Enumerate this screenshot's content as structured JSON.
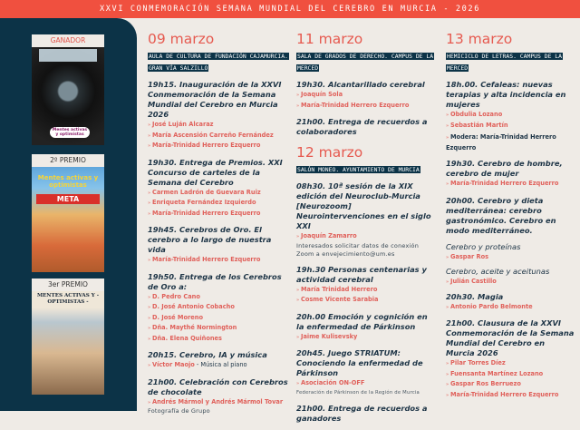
{
  "banner": "XXVI CONMEMORACIÓN SEMANA MUNDIAL DEL CEREBRO EN MURCIA - 2026",
  "colors": {
    "banner": "#f0503f",
    "sidebar": "#0c3347",
    "accent": "#e65a50",
    "background": "#efebe6"
  },
  "posters": [
    {
      "label": "GANADOR",
      "art_text": "Mentes activas y optimistas"
    },
    {
      "label": "2º PREMIO",
      "art_text": "Mentes activas y optimistas",
      "banner_text": "META"
    },
    {
      "label": "3er PREMIO",
      "art_text": "MENTES ACTIVAS Y - OPTIMISTAS -"
    }
  ],
  "columns": [
    {
      "days": [
        {
          "date": "09 marzo",
          "location": "AULA DE CULTURA DE FUNDACIÓN CAJAMURCIA. GRAN VÍA SALZILLO",
          "events": [
            {
              "title": "19h15. Inauguración de la XXVI Conmemoración de la Semana Mundial del Cerebro en Murcia 2026",
              "speakers": [
                "José Luján Alcaraz",
                "María Ascensión Carreño Fernández",
                "María-Trinidad Herrero Ezquerro"
              ]
            },
            {
              "title": "19h30. Entrega de Premios. XXI Concurso de carteles de la Semana del Cerebro",
              "speakers": [
                "Carmen Ladrón de Guevara Ruiz",
                "Enriqueta Fernández Izquierdo",
                "María-Trinidad Herrero Ezquerro"
              ]
            },
            {
              "title": "19h45. Cerebros de Oro. El cerebro a lo largo de nuestra vida",
              "speakers": [
                "María-Trinidad Herrero Ezquerro"
              ]
            },
            {
              "title": "19h50. Entrega de los Cerebros de Oro a:",
              "speakers": [
                "D. Pedro Cano",
                "D. José Antonio Cobacho",
                "D. José Moreno",
                "Dña. Maythé Normington",
                "Dña. Elena Quiñones"
              ]
            },
            {
              "title": "20h15. Cerebro, IA y música",
              "speakers": [
                {
                  "name": "Víctor Maojo",
                  "suffix": " - Música al piano"
                }
              ]
            },
            {
              "title": "21h00. Celebración con Cerebros de chocolate",
              "speakers": [
                "Andrés Mármol y Andrés Mármol Tovar"
              ],
              "notes": [
                "Fotografía de Grupo"
              ]
            }
          ]
        }
      ]
    },
    {
      "days": [
        {
          "date": "11 marzo",
          "location": "SALA DE GRADOS DE DERECHO. CAMPUS DE LA MERCED",
          "events": [
            {
              "title": "19h30. Alcantarillado cerebral",
              "speakers": [
                "Joaquín Sola",
                "María-Trinidad Herrero Ezquerro"
              ]
            },
            {
              "title": "21h00. Entrega de recuerdos a colaboradores",
              "speakers": []
            }
          ]
        },
        {
          "date": "12 marzo",
          "location": "SALÓN MONEO. AYUNTAMIENTO DE MURCIA",
          "events": [
            {
              "title": "08h30. 10ª sesión de la XIX edición del Neuroclub-Murcia [Neurozoom] Neurointervenciones en el siglo XXI",
              "speakers": [
                "Joaquín Zamarro"
              ],
              "notes": [
                "Interesados solicitar datos de conexión Zoom a envejecimiento@um.es"
              ]
            },
            {
              "title": "19h.30 Personas centenarias y actividad cerebral",
              "speakers": [
                "María Trinidad Herrero",
                "Cosme Vicente Sarabia"
              ]
            },
            {
              "title": "20h.00 Emoción y cognición en la enfermedad de Párkinson",
              "speakers": [
                "Jaime Kulisevsky"
              ]
            },
            {
              "title": "20h45. Juego STRIATUM: Conociendo la enfermedad de Párkinson",
              "speakers": [
                "Asociación ON-OFF"
              ],
              "small_notes": [
                "Federación de Párkinson de la Región de Murcia"
              ]
            },
            {
              "title": "21h00. Entrega de recuerdos a ganadores",
              "speakers": []
            }
          ]
        }
      ]
    },
    {
      "days": [
        {
          "date": "13 marzo",
          "location": "HEMICICLO DE LETRAS. CAMPUS DE LA MERCED",
          "events": [
            {
              "title": "18h.00. Cefaleas: nuevas terapias y alta incidencia en mujeres",
              "speakers": [
                "Obdulia Lozano",
                "Sebastián Martín"
              ],
              "moderator": "Modera: María-Trinidad Herrero Ezquerro"
            },
            {
              "title": "19h30. Cerebro de hombre, cerebro de mujer",
              "speakers": [
                "María-Trinidad Herrero Ezquerro"
              ]
            },
            {
              "title": "20h00. Cerebro y dieta mediterránea: cerebro gastronómico. Cerebro en modo mediterráneo.",
              "speakers": []
            },
            {
              "title": "Cerebro y proteínas",
              "sub": true,
              "speakers": [
                "Gaspar Ros"
              ]
            },
            {
              "title": "Cerebro, aceite y aceitunas",
              "sub": true,
              "speakers": [
                "Julián Castillo"
              ]
            },
            {
              "title": "20h30. Magia",
              "speakers": [
                "Antonio Pardo Belmonte"
              ]
            },
            {
              "title": "21h00. Clausura de la XXVI Conmemoración de la Semana Mundial del Cerebro en Murcia 2026",
              "speakers": [
                "Pilar Torres Díez",
                "Fuensanta Martínez Lozano",
                "Gaspar Ros Berruezo",
                "María-Trinidad Herrero Ezquerro"
              ]
            }
          ]
        }
      ]
    }
  ]
}
